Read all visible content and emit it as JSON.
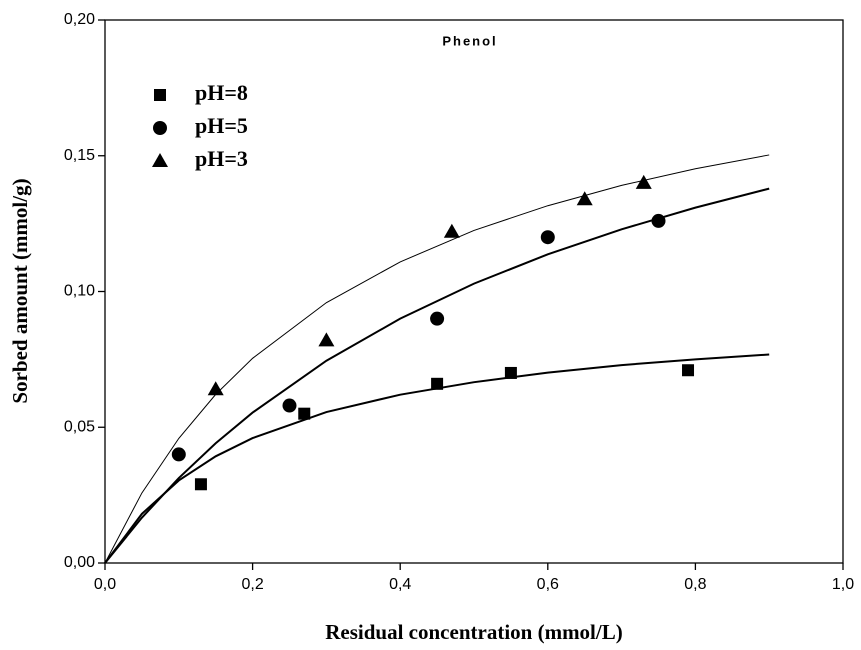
{
  "chart_data": {
    "type": "scatter",
    "title": "Phenol",
    "x_label": "Residual concentration (mmol/L)",
    "y_label": "Sorbed amount (mmol/g)",
    "xlim": [
      0,
      1.0
    ],
    "ylim": [
      0,
      0.2
    ],
    "xticks": [
      {
        "value": 0,
        "label": "0,0"
      },
      {
        "value": 0.2,
        "label": "0,2"
      },
      {
        "value": 0.4,
        "label": "0,4"
      },
      {
        "value": 0.6,
        "label": "0,6"
      },
      {
        "value": 0.8,
        "label": "0,8"
      },
      {
        "value": 1.0,
        "label": "1,0"
      }
    ],
    "yticks": [
      {
        "value": 0,
        "label": "0,00"
      },
      {
        "value": 0.05,
        "label": "0,05"
      },
      {
        "value": 0.1,
        "label": "0,10"
      },
      {
        "value": 0.15,
        "label": "0,15"
      },
      {
        "value": 0.2,
        "label": "0,20"
      }
    ],
    "legend": "upper-left",
    "series": [
      {
        "name": "pH=8",
        "color": "#000000",
        "marker": "square",
        "x": [
          0.13,
          0.27,
          0.45,
          0.55,
          0.79
        ],
        "values": [
          0.029,
          0.055,
          0.066,
          0.07,
          0.071
        ]
      },
      {
        "name": "pH=5",
        "color": "#000000",
        "marker": "circle",
        "x": [
          0.1,
          0.25,
          0.45,
          0.6,
          0.75
        ],
        "values": [
          0.04,
          0.058,
          0.09,
          0.12,
          0.126
        ]
      },
      {
        "name": "pH=3",
        "color": "#000000",
        "marker": "triangle",
        "x": [
          0.15,
          0.3,
          0.47,
          0.65,
          0.73
        ],
        "values": [
          0.064,
          0.082,
          0.122,
          0.134,
          0.14
        ]
      }
    ],
    "fit_x": [
      0,
      0.05,
      0.1,
      0.15,
      0.2,
      0.3,
      0.4,
      0.5,
      0.6,
      0.7,
      0.8,
      0.9
    ],
    "fits": [
      {
        "line_width": 2,
        "values": [
          0,
          0.0181,
          0.0304,
          0.0393,
          0.046,
          0.0556,
          0.062,
          0.0666,
          0.0701,
          0.0729,
          0.075,
          0.0768
        ]
      },
      {
        "line_width": 2,
        "values": [
          0,
          0.0167,
          0.0313,
          0.0441,
          0.0554,
          0.0745,
          0.09,
          0.1029,
          0.1137,
          0.1229,
          0.1309,
          0.1379
        ]
      },
      {
        "line_width": 1,
        "values": [
          0,
          0.0258,
          0.0459,
          0.0621,
          0.0754,
          0.0959,
          0.1109,
          0.1225,
          0.1316,
          0.1391,
          0.1452,
          0.1503
        ]
      }
    ]
  }
}
